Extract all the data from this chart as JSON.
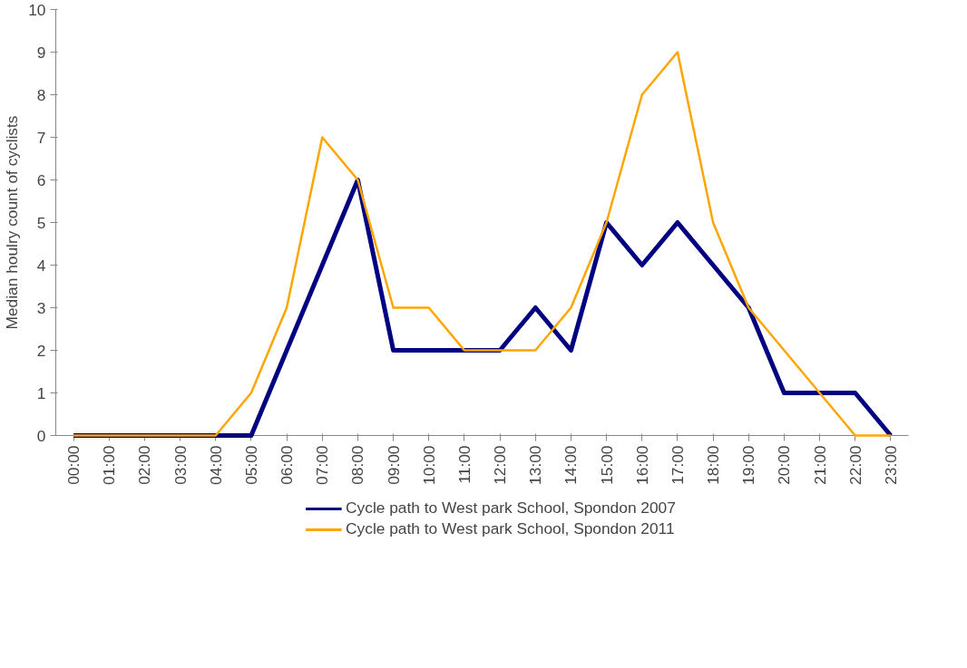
{
  "chart_data": {
    "type": "line",
    "ylabel": "Median houlry count of cyclists",
    "categories": [
      "00:00",
      "01:00",
      "02:00",
      "03:00",
      "04:00",
      "05:00",
      "06:00",
      "07:00",
      "08:00",
      "09:00",
      "10:00",
      "11:00",
      "12:00",
      "13:00",
      "14:00",
      "15:00",
      "16:00",
      "17:00",
      "18:00",
      "19:00",
      "20:00",
      "21:00",
      "22:00",
      "23:00"
    ],
    "series": [
      {
        "name": "Cycle path to West park School, Spondon 2007",
        "color": "#000080",
        "values": [
          0,
          0,
          0,
          0,
          0,
          0,
          2,
          4,
          6,
          2,
          2,
          2,
          2,
          3,
          2,
          5,
          4,
          5,
          4,
          3,
          1,
          1,
          1,
          0
        ]
      },
      {
        "name": "Cycle path to West park School, Spondon 2011",
        "color": "#ffa500",
        "values": [
          0,
          0,
          0,
          0,
          0,
          1,
          3,
          7,
          6,
          3,
          3,
          2,
          2,
          2,
          3,
          5,
          8,
          9,
          5,
          3,
          2,
          1,
          0,
          0
        ]
      }
    ],
    "ylim": [
      0,
      10
    ],
    "yticks": [
      0,
      1,
      2,
      3,
      4,
      5,
      6,
      7,
      8,
      9,
      10
    ],
    "grid": false,
    "legend": "bottom",
    "marker": "none",
    "line_style": "solid"
  }
}
